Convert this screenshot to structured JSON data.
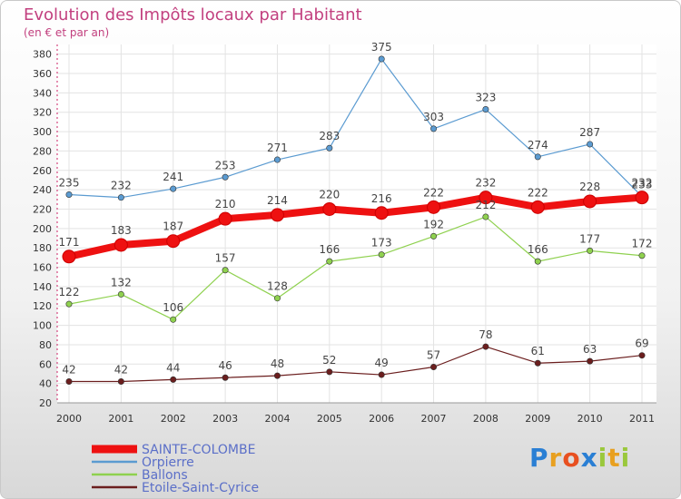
{
  "title": "Evolution des Impôts locaux par Habitant",
  "subtitle": "(en € et par an)",
  "logo_text": "Proxiti",
  "chart_data": {
    "type": "line",
    "title": "Evolution des Impôts locaux par Habitant",
    "subtitle": "(en € et par an)",
    "xlabel": "",
    "ylabel": "",
    "x": [
      "2000",
      "2001",
      "2002",
      "2003",
      "2004",
      "2005",
      "2006",
      "2007",
      "2008",
      "2009",
      "2010",
      "2011"
    ],
    "ylim": [
      20,
      390
    ],
    "yticks": [
      20,
      40,
      60,
      80,
      100,
      120,
      140,
      160,
      180,
      200,
      220,
      240,
      260,
      280,
      300,
      320,
      340,
      360,
      380
    ],
    "grid": true,
    "legend_position": "bottom-left",
    "series": [
      {
        "name": "SAINTE-COLOMBE",
        "color": "#ee1111",
        "width": 8,
        "values": [
          171,
          183,
          187,
          210,
          214,
          220,
          216,
          222,
          232,
          222,
          228,
          232
        ]
      },
      {
        "name": "Orpierre",
        "color": "#5b9bd1",
        "width": 1.2,
        "values": [
          235,
          232,
          241,
          253,
          271,
          283,
          375,
          303,
          323,
          274,
          287,
          233
        ]
      },
      {
        "name": "Ballons",
        "color": "#8fd14f",
        "width": 1.2,
        "values": [
          122,
          132,
          106,
          157,
          128,
          166,
          173,
          192,
          212,
          166,
          177,
          172
        ]
      },
      {
        "name": "Etoile-Saint-Cyrice",
        "color": "#6b1e1e",
        "width": 1.2,
        "values": [
          42,
          42,
          44,
          46,
          48,
          52,
          49,
          57,
          78,
          61,
          63,
          69
        ]
      }
    ]
  }
}
